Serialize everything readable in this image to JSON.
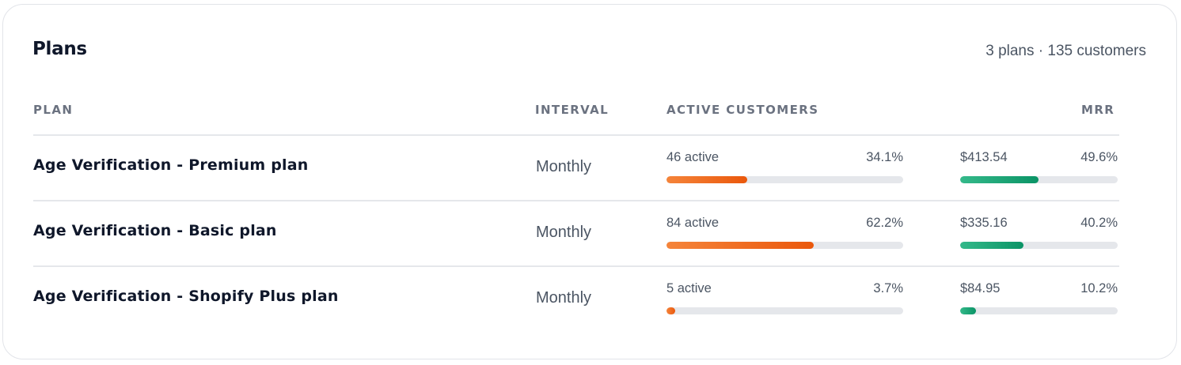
{
  "card": {
    "title": "Plans",
    "summary": "3 plans · 135 customers"
  },
  "columns": {
    "plan": "PLAN",
    "interval": "INTERVAL",
    "active_customers": "ACTIVE CUSTOMERS",
    "mrr": "MRR"
  },
  "rows": [
    {
      "name": "Age Verification - Premium plan",
      "interval": "Monthly",
      "active_label": "46 active",
      "active_pct": "34.1%",
      "active_fraction": 0.341,
      "mrr_label": "$413.54",
      "mrr_pct": "49.6%",
      "mrr_fraction": 0.496
    },
    {
      "name": "Age Verification - Basic plan",
      "interval": "Monthly",
      "active_label": "84 active",
      "active_pct": "62.2%",
      "active_fraction": 0.622,
      "mrr_label": "$335.16",
      "mrr_pct": "40.2%",
      "mrr_fraction": 0.402
    },
    {
      "name": "Age Verification - Shopify Plus plan",
      "interval": "Monthly",
      "active_label": "5 active",
      "active_pct": "3.7%",
      "active_fraction": 0.037,
      "mrr_label": "$84.95",
      "mrr_pct": "10.2%",
      "mrr_fraction": 0.102
    }
  ],
  "colors": {
    "active_bar": "#ea580c",
    "mrr_bar": "#0b9466",
    "track": "#e5e7eb"
  }
}
